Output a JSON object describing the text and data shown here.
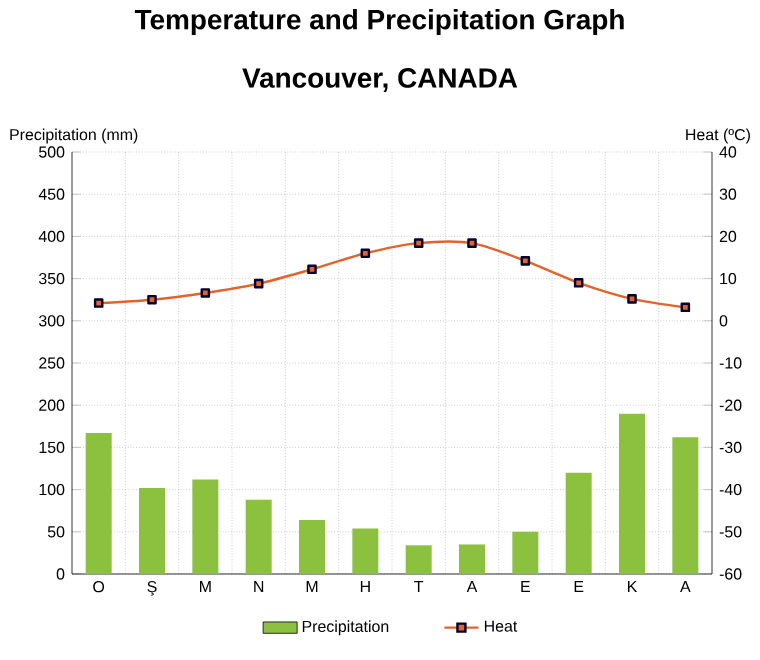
{
  "chart_data": {
    "type": "bar",
    "title": "Temperature and Precipitation Graph",
    "subtitle": "Vancouver, CANADA",
    "ylabel": "Precipitation (mm)",
    "y2label": "Heat (ºC)",
    "categories": [
      "O",
      "Ş",
      "M",
      "N",
      "M",
      "H",
      "T",
      "A",
      "E",
      "E",
      "K",
      "A"
    ],
    "series": [
      {
        "name": "Precipitation",
        "color": "#8cc13f",
        "values": [
          167,
          102,
          112,
          88,
          64,
          54,
          34,
          35,
          50,
          120,
          190,
          162
        ]
      },
      {
        "name": "Heat",
        "type": "line",
        "axis": "y2",
        "color": "#e0652a",
        "values": [
          4.2,
          5,
          6.6,
          8.8,
          12.2,
          16,
          18.4,
          18.4,
          14.2,
          9,
          5.2,
          3.2
        ]
      }
    ],
    "ylim": [
      0,
      500
    ],
    "yticks": [
      0,
      50,
      100,
      150,
      200,
      250,
      300,
      350,
      400,
      450,
      500
    ],
    "y2lim": [
      -60,
      40
    ],
    "y2ticks": [
      -60,
      -50,
      -40,
      -30,
      -20,
      -10,
      0,
      10,
      20,
      30,
      40
    ],
    "grid": true,
    "legend": "bottom",
    "marker": "square",
    "line_style": "solid"
  }
}
